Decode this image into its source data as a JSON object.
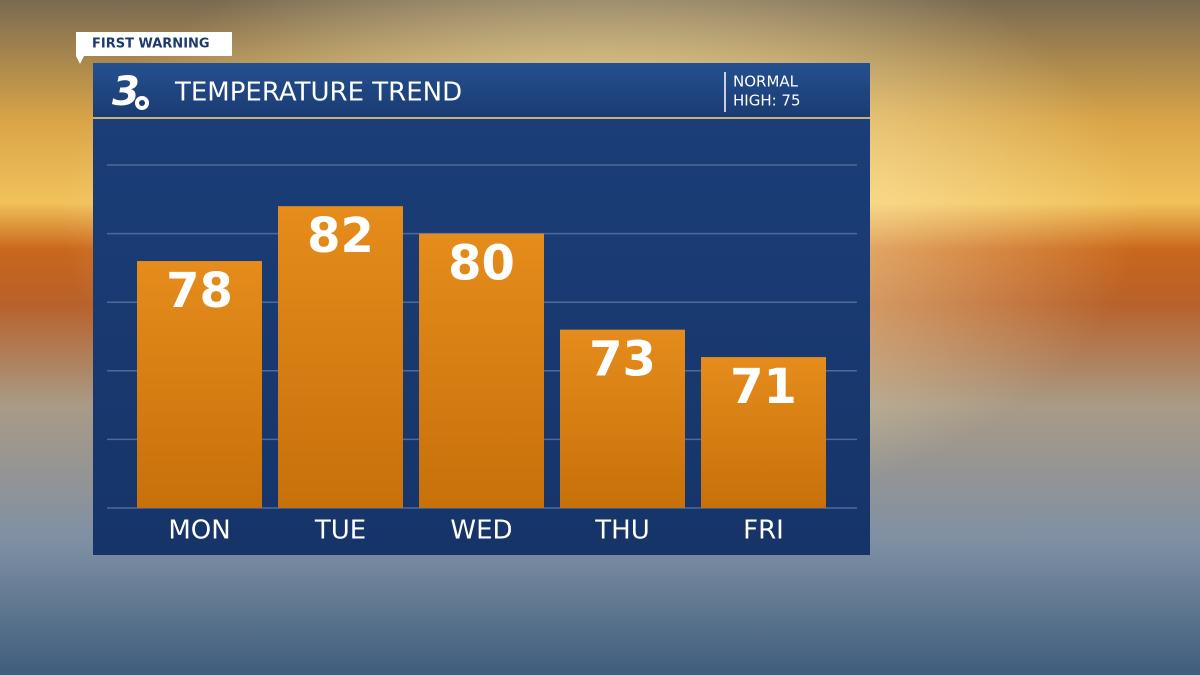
{
  "tag": "FIRST WARNING",
  "logo": "3",
  "normal": [
    "NORMAL",
    "HIGH: 75"
  ],
  "chart_data": {
    "type": "bar",
    "title": "TEMPERATURE TREND",
    "categories": [
      "MON",
      "TUE",
      "WED",
      "THU",
      "FRI"
    ],
    "values": [
      78,
      82,
      80,
      73,
      71
    ],
    "color": "#d97f10",
    "ylim": [
      60,
      85
    ],
    "yticks": [
      60,
      65,
      70,
      75,
      80,
      85
    ],
    "grid": true
  }
}
